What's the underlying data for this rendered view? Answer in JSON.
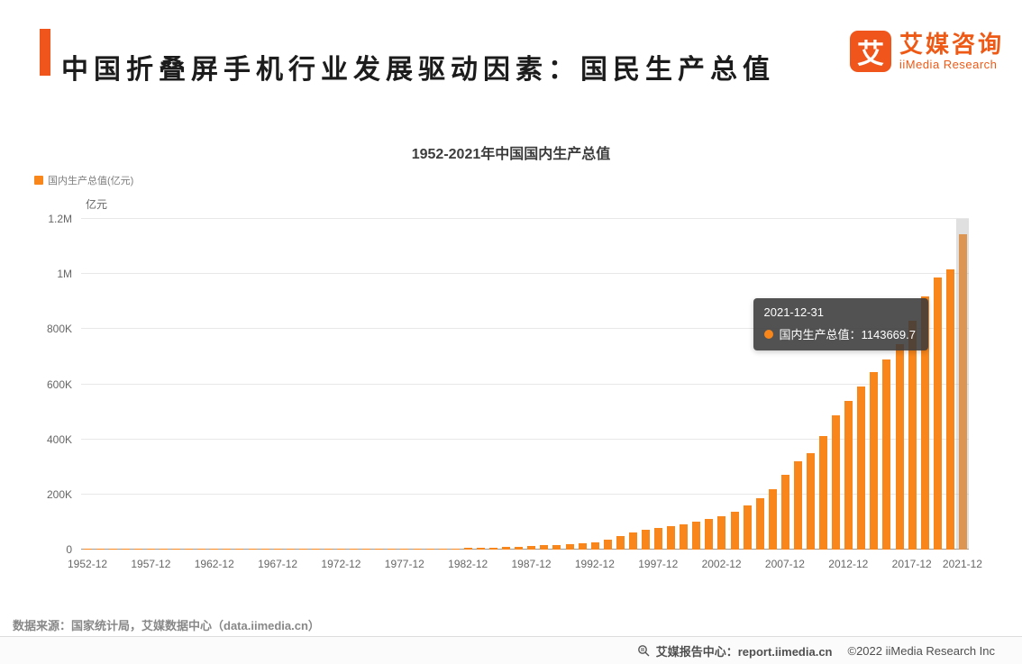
{
  "header": {
    "title": "中国折叠屏手机行业发展驱动因素：国民生产总值",
    "logo": {
      "mark": "艾",
      "name": "艾媒咨询",
      "subtitle": "iiMedia Research"
    }
  },
  "chart": {
    "title": "1952-2021年中国国内生产总值",
    "legend_label": "国内生产总值(亿元)",
    "unit_label": "亿元",
    "tooltip": {
      "date": "2021-12-31",
      "series_text": "国内生产总值：1143669.7"
    }
  },
  "chart_data": {
    "type": "bar",
    "title": "1952-2021年中国国内生产总值",
    "xlabel": "",
    "ylabel": "亿元",
    "ylim": [
      0,
      1200000
    ],
    "grid": true,
    "legend": [
      {
        "name": "国内生产总值(亿元)",
        "color": "#f8861b"
      }
    ],
    "start_year": 1952,
    "x_suffix": "-12",
    "values": [
      679,
      824,
      859,
      911,
      1030,
      1071,
      1312,
      1447,
      1470,
      1232,
      1162,
      1248,
      1469,
      1734,
      1881,
      1792,
      1735,
      1965,
      2279,
      2456,
      2548,
      2772,
      2824,
      3013,
      2961,
      3221,
      3678,
      4100,
      4587,
      4935,
      5373,
      6020,
      7278,
      9098,
      10376,
      12174,
      15180,
      17179,
      18872,
      22005,
      27194,
      35673,
      48637,
      61339,
      71813,
      79715,
      85195,
      90564,
      100280,
      110863,
      121717,
      137422,
      161840,
      187318,
      219438,
      270092,
      319244,
      348517,
      412119,
      487940,
      538580,
      592963,
      643563,
      688858,
      746395,
      832035,
      919281,
      986515,
      1015986,
      1143669.7
    ],
    "y_ticks": [
      {
        "value": 0,
        "label": "0"
      },
      {
        "value": 200000,
        "label": "200K"
      },
      {
        "value": 400000,
        "label": "400K"
      },
      {
        "value": 600000,
        "label": "600K"
      },
      {
        "value": 800000,
        "label": "800K"
      },
      {
        "value": 1000000,
        "label": "1M"
      },
      {
        "value": 1200000,
        "label": "1.2M"
      }
    ],
    "x_ticks": [
      {
        "index": 0,
        "label": "1952-12"
      },
      {
        "index": 5,
        "label": "1957-12"
      },
      {
        "index": 10,
        "label": "1962-12"
      },
      {
        "index": 15,
        "label": "1967-12"
      },
      {
        "index": 20,
        "label": "1972-12"
      },
      {
        "index": 25,
        "label": "1977-12"
      },
      {
        "index": 30,
        "label": "1982-12"
      },
      {
        "index": 35,
        "label": "1987-12"
      },
      {
        "index": 40,
        "label": "1992-12"
      },
      {
        "index": 45,
        "label": "1997-12"
      },
      {
        "index": 50,
        "label": "2002-12"
      },
      {
        "index": 55,
        "label": "2007-12"
      },
      {
        "index": 60,
        "label": "2012-12"
      },
      {
        "index": 65,
        "label": "2017-12"
      },
      {
        "index": 69,
        "label": "2021-12"
      }
    ],
    "highlight_index": 69,
    "bar_color": "#f8861b"
  },
  "source": {
    "text": "数据来源：国家统计局，艾媒数据中心（data.iimedia.cn）"
  },
  "footer": {
    "report": "艾媒报告中心：report.iimedia.cn",
    "copyright": "©2022 iiMedia Research Inc"
  },
  "colors": {
    "brand": "#f0551c",
    "bar": "#f8861b",
    "grid": "#e8e8e8",
    "axis": "#999999"
  }
}
